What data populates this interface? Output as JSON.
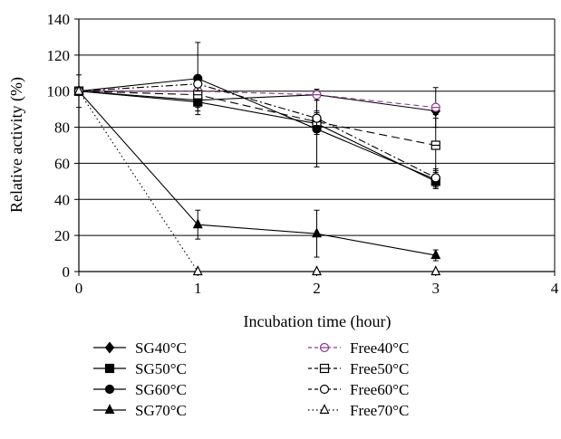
{
  "chart_data": {
    "type": "line",
    "title": "",
    "xlabel": "Incubation time (hour)",
    "ylabel": "Relative activity (%)",
    "xlim": [
      0,
      4
    ],
    "ylim": [
      0,
      140
    ],
    "x_ticks": [
      "0",
      "1",
      "2",
      "3",
      "4"
    ],
    "y_ticks": [
      "0",
      "20",
      "40",
      "60",
      "80",
      "100",
      "120",
      "140"
    ],
    "grid": "horizontal",
    "legend_position": "bottom",
    "series": [
      {
        "name": "SG40°C",
        "x": [
          0,
          1,
          2,
          3
        ],
        "y": [
          100,
          95,
          98,
          89
        ],
        "err": [
          0,
          4,
          3,
          2
        ],
        "marker": "diamond",
        "filled": true,
        "line": "solid",
        "color": "#000000"
      },
      {
        "name": "SG50°C",
        "x": [
          0,
          1,
          2,
          3
        ],
        "y": [
          100,
          94,
          82,
          50
        ],
        "err": [
          0,
          5,
          6,
          4
        ],
        "marker": "square",
        "filled": true,
        "line": "solid",
        "color": "#000000"
      },
      {
        "name": "SG60°C",
        "x": [
          0,
          1,
          2,
          3
        ],
        "y": [
          100,
          107,
          79,
          51
        ],
        "err": [
          0,
          20,
          21,
          5
        ],
        "marker": "circle",
        "filled": true,
        "line": "solid",
        "color": "#000000"
      },
      {
        "name": "SG70°C",
        "x": [
          0,
          1,
          2,
          3
        ],
        "y": [
          100,
          26,
          21,
          9
        ],
        "err": [
          9,
          8,
          13,
          3
        ],
        "marker": "triangle",
        "filled": true,
        "line": "solid",
        "color": "#000000"
      },
      {
        "name": "Free40°C",
        "x": [
          0,
          1,
          2,
          3
        ],
        "y": [
          100,
          100,
          98,
          91
        ],
        "err": [
          0,
          4,
          3,
          11
        ],
        "marker": "circle-minus",
        "filled": false,
        "line": "dash",
        "color": "#8a3a8a"
      },
      {
        "name": "Free50°C",
        "x": [
          0,
          1,
          2,
          3
        ],
        "y": [
          100,
          98,
          83,
          70
        ],
        "err": [
          0,
          4,
          4,
          15
        ],
        "marker": "square-minus",
        "filled": false,
        "line": "longdash",
        "color": "#000000"
      },
      {
        "name": "Free60°C",
        "x": [
          0,
          1,
          2,
          3
        ],
        "y": [
          100,
          104,
          85,
          52
        ],
        "err": [
          0,
          4,
          4,
          5
        ],
        "marker": "circle",
        "filled": false,
        "line": "dashdot",
        "color": "#000000"
      },
      {
        "name": "Free70°C",
        "x": [
          0,
          1,
          2,
          3
        ],
        "y": [
          100,
          0,
          0,
          0
        ],
        "err": [
          0,
          0,
          0,
          0
        ],
        "marker": "triangle",
        "filled": false,
        "line": "dotted",
        "color": "#000000"
      }
    ]
  }
}
